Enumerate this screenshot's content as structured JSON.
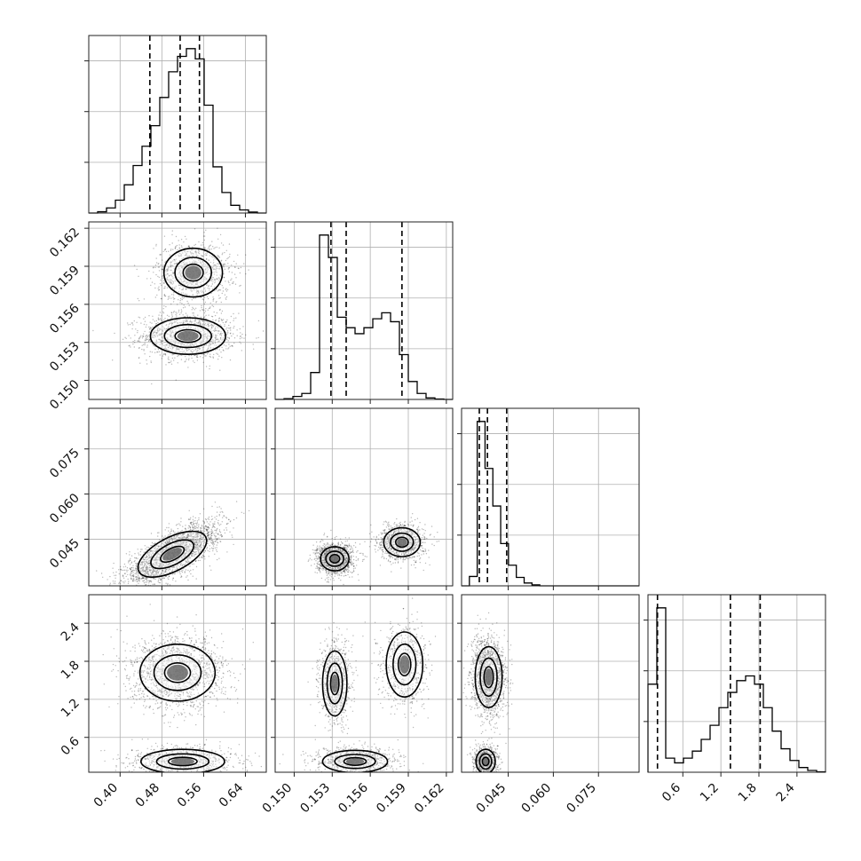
{
  "chart_data": {
    "type": "corner",
    "parameters": [
      {
        "range": [
          0.34,
          0.68
        ],
        "ticks": [
          0.4,
          0.48,
          0.56,
          0.64
        ],
        "tick_labels": [
          "0.40",
          "0.48",
          "0.56",
          "0.64"
        ],
        "quantiles": [
          0.457,
          0.515,
          0.552
        ],
        "hist_bins": [
          0.34,
          0.357,
          0.374,
          0.391,
          0.408,
          0.425,
          0.442,
          0.459,
          0.476,
          0.493,
          0.51,
          0.527,
          0.544,
          0.561,
          0.578,
          0.595,
          0.612,
          0.629,
          0.646,
          0.663,
          0.68
        ],
        "hist_counts": [
          0.0,
          0.5,
          2.0,
          5.0,
          11.0,
          18.5,
          26.0,
          34.0,
          45.0,
          55.0,
          61.0,
          64.0,
          60.0,
          42.0,
          18.0,
          8.0,
          3.0,
          1.2,
          0.4,
          0.0
        ]
      },
      {
        "range": [
          0.1485,
          0.1625
        ],
        "ticks": [
          0.15,
          0.153,
          0.156,
          0.159,
          0.162
        ],
        "tick_labels": [
          "0.150",
          "0.153",
          "0.156",
          "0.159",
          "0.162"
        ],
        "quantiles": [
          0.1529,
          0.1541,
          0.1585
        ],
        "hist_bins": [
          0.1485,
          0.1492,
          0.1499,
          0.1506,
          0.1513,
          0.152,
          0.1527,
          0.1534,
          0.1541,
          0.1548,
          0.1555,
          0.1562,
          0.1569,
          0.1576,
          0.1583,
          0.159,
          0.1597,
          0.1604,
          0.1611,
          0.1618,
          0.1625
        ],
        "hist_counts": [
          0.0,
          0.5,
          2.0,
          4.0,
          18.0,
          110.0,
          95.0,
          55.0,
          48.0,
          44.0,
          48.0,
          54.0,
          58.0,
          52.0,
          30.0,
          12.0,
          4.0,
          1.0,
          0.3,
          0.0
        ]
      },
      {
        "range": [
          0.0295,
          0.0885
        ],
        "ticks": [
          0.045,
          0.06,
          0.075
        ],
        "tick_labels": [
          "0.045",
          "0.060",
          "0.075"
        ],
        "quantiles": [
          0.0354,
          0.0381,
          0.0445
        ],
        "hist_bins": [
          0.0295,
          0.0321,
          0.0347,
          0.0373,
          0.0399,
          0.0425,
          0.0451,
          0.0477,
          0.0503,
          0.0529,
          0.0555,
          0.0581,
          0.0607,
          0.0633,
          0.0659,
          0.0685,
          0.0711,
          0.0737,
          0.0763,
          0.0789,
          0.0885
        ],
        "hist_counts": [
          0.0,
          10.0,
          175.0,
          125.0,
          85.0,
          45.0,
          22.0,
          9.0,
          3.0,
          1.0,
          0.0,
          0.0,
          0.0,
          0.0,
          0.0,
          0.0,
          0.0,
          0.0,
          0.0,
          0.0
        ]
      },
      {
        "range": [
          0.05,
          2.85
        ],
        "ticks": [
          0.6,
          1.2,
          1.8,
          2.4
        ],
        "tick_labels": [
          "0.6",
          "1.2",
          "1.8",
          "2.4"
        ],
        "quantiles": [
          0.2,
          1.35,
          1.82
        ],
        "hist_bins": [
          0.05,
          0.19,
          0.33,
          0.47,
          0.61,
          0.75,
          0.89,
          1.03,
          1.17,
          1.31,
          1.45,
          1.59,
          1.73,
          1.87,
          2.01,
          2.15,
          2.29,
          2.43,
          2.57,
          2.71,
          2.85
        ],
        "hist_counts": [
          75.0,
          140.0,
          12.0,
          8.0,
          12.0,
          18.0,
          28.0,
          40.0,
          55.0,
          68.0,
          78.0,
          82.0,
          75.0,
          55.0,
          35.0,
          20.0,
          10.0,
          4.0,
          1.5,
          0.4
        ]
      }
    ],
    "pairs": [
      {
        "x_param": 0,
        "y_param": 1,
        "modes": [
          {
            "center": [
              0.53,
              0.1535
            ],
            "sigma": [
              0.045,
              0.0009
            ],
            "weight": 0.55
          },
          {
            "center": [
              0.54,
              0.1585
            ],
            "sigma": [
              0.035,
              0.0012
            ],
            "weight": 0.45
          }
        ]
      },
      {
        "x_param": 0,
        "y_param": 2,
        "modes": [
          {
            "center": [
              0.5,
              0.04
            ],
            "sigma": [
              0.045,
              0.0035
            ],
            "weight": 1.0,
            "slope": 0.09
          }
        ]
      },
      {
        "x_param": 1,
        "y_param": 2,
        "modes": [
          {
            "center": [
              0.1532,
              0.0385
            ],
            "sigma": [
              0.0007,
              0.0025
            ],
            "weight": 0.6
          },
          {
            "center": [
              0.1585,
              0.044
            ],
            "sigma": [
              0.0009,
              0.003
            ],
            "weight": 0.4
          }
        ]
      },
      {
        "x_param": 0,
        "y_param": 3,
        "modes": [
          {
            "center": [
              0.51,
              1.62
            ],
            "sigma": [
              0.045,
              0.28
            ],
            "weight": 0.65
          },
          {
            "center": [
              0.52,
              0.22
            ],
            "sigma": [
              0.05,
              0.12
            ],
            "weight": 0.35
          }
        ]
      },
      {
        "x_param": 1,
        "y_param": 3,
        "modes": [
          {
            "center": [
              0.1532,
              1.45
            ],
            "sigma": [
              0.0006,
              0.32
            ],
            "weight": 0.35
          },
          {
            "center": [
              0.1587,
              1.75
            ],
            "sigma": [
              0.0009,
              0.32
            ],
            "weight": 0.3
          },
          {
            "center": [
              0.1548,
              0.22
            ],
            "sigma": [
              0.0016,
              0.11
            ],
            "weight": 0.35
          }
        ]
      },
      {
        "x_param": 2,
        "y_param": 3,
        "modes": [
          {
            "center": [
              0.0385,
              1.55
            ],
            "sigma": [
              0.0028,
              0.3
            ],
            "weight": 0.65
          },
          {
            "center": [
              0.0375,
              0.22
            ],
            "sigma": [
              0.002,
              0.12
            ],
            "weight": 0.35
          }
        ]
      }
    ],
    "x_labels": [
      "",
      "",
      "",
      ""
    ],
    "y_labels": [
      "",
      "",
      "",
      ""
    ],
    "grid": true
  }
}
